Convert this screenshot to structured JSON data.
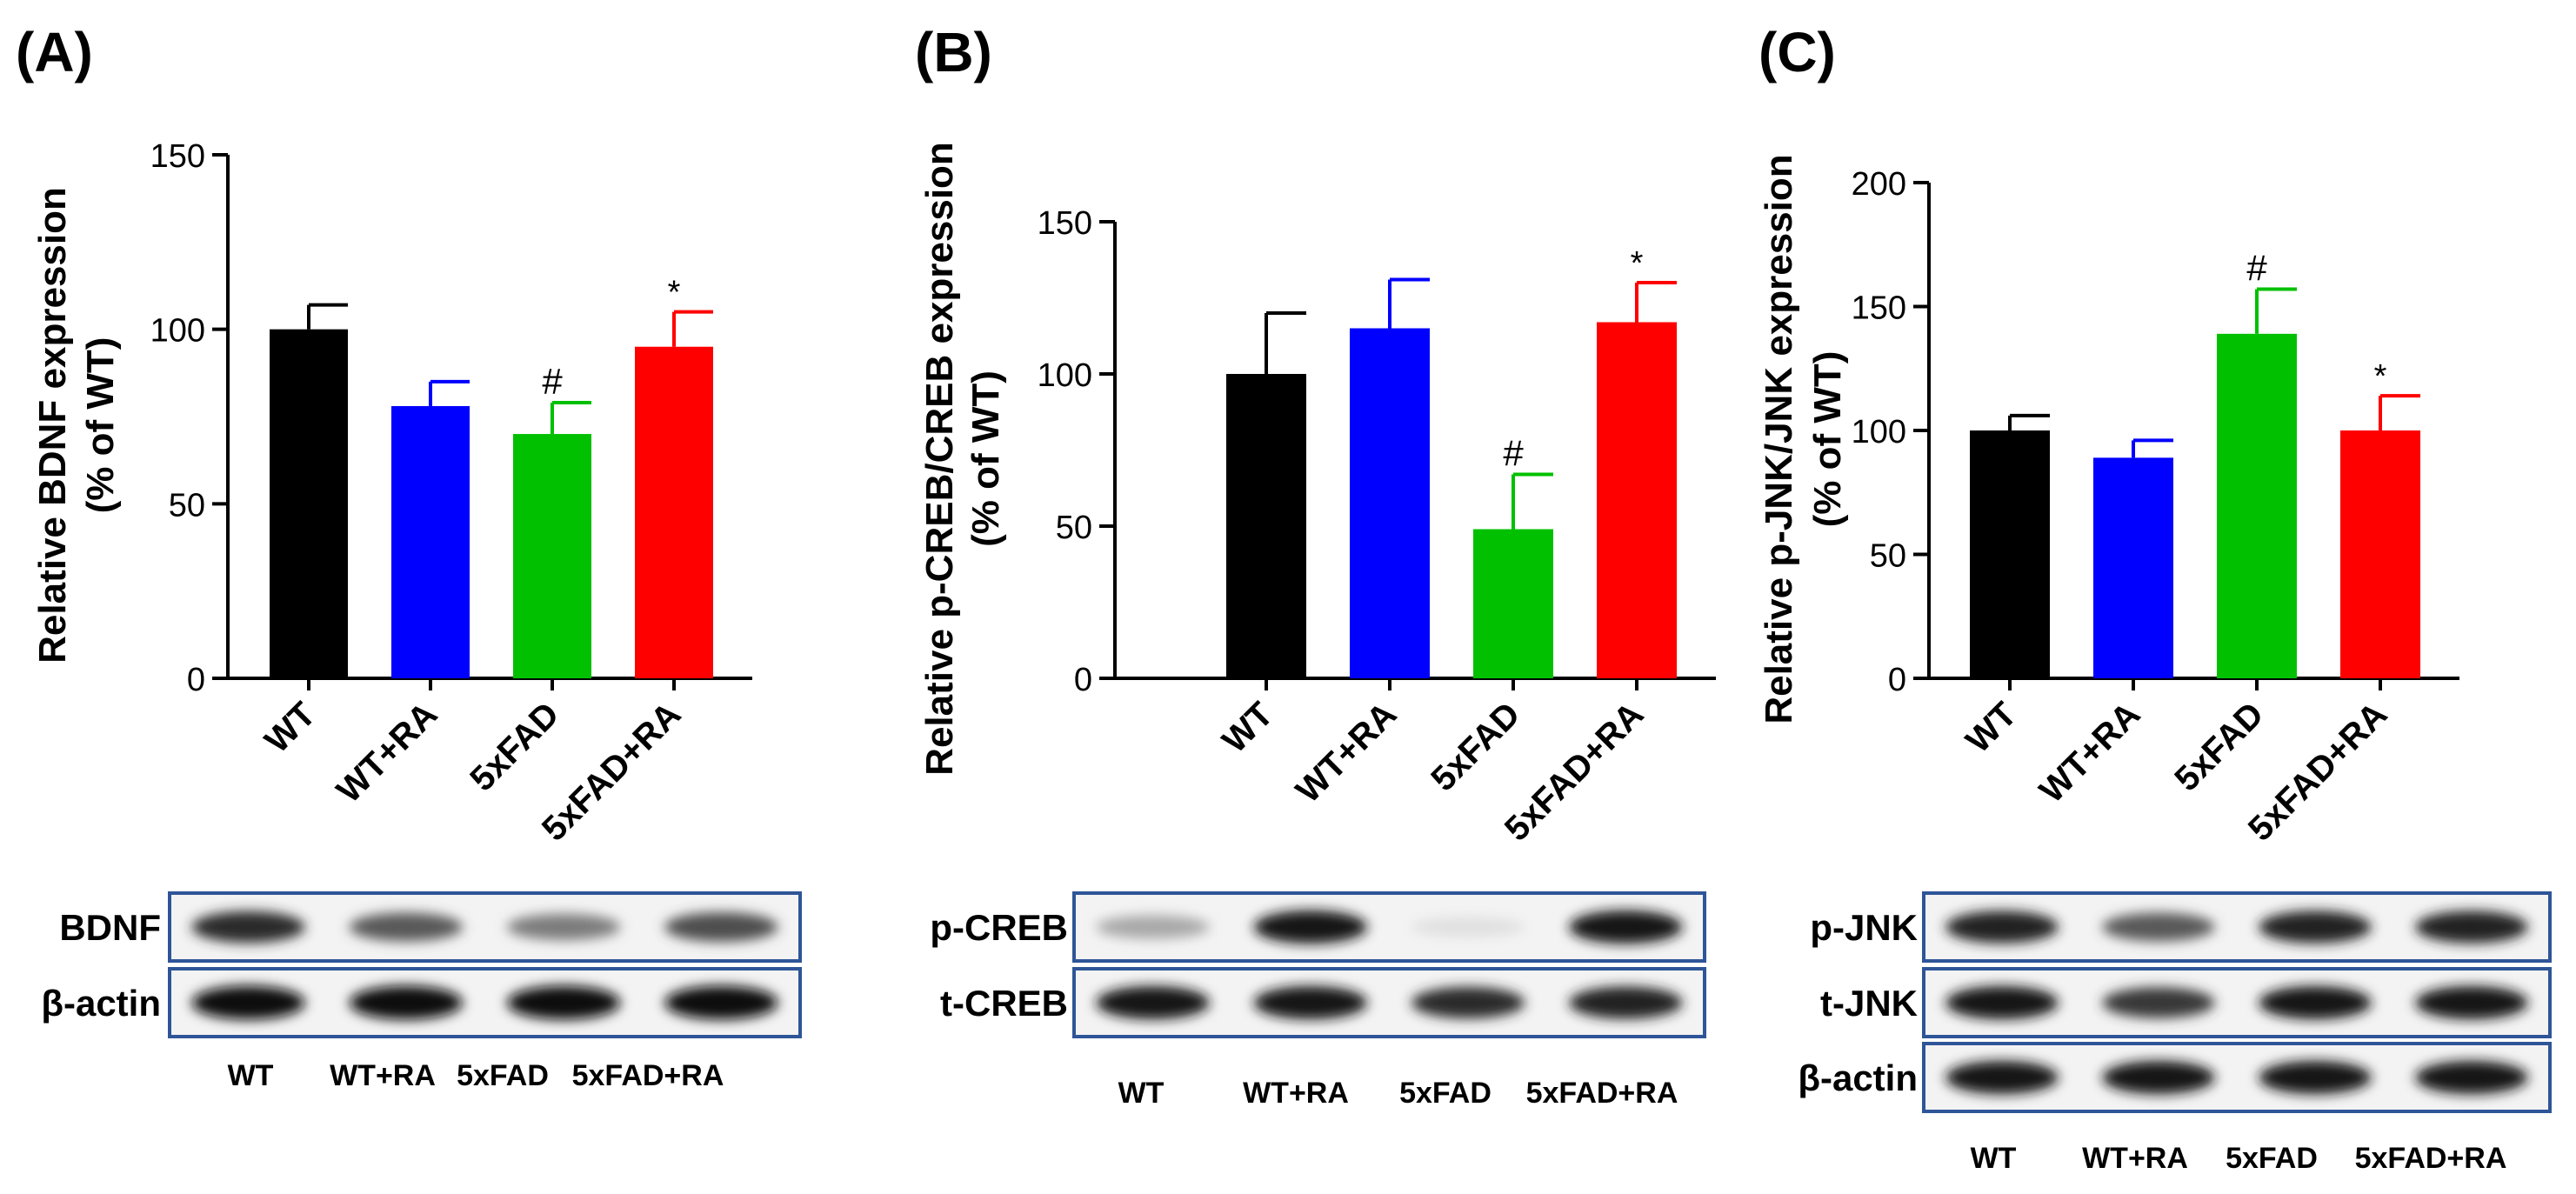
{
  "colors": {
    "black": "#000000",
    "blue": "#0000ff",
    "green": "#00c000",
    "red": "#ff0000",
    "box": "#2e5597"
  },
  "chart_data": [
    {
      "type": "bar",
      "panel_label": "(A)",
      "categories": [
        "WT",
        "WT+RA",
        "5xFAD",
        "5xFAD+RA"
      ],
      "values": [
        100,
        78,
        70,
        95
      ],
      "errors": [
        7,
        7,
        9,
        10
      ],
      "annotations": [
        "",
        "",
        "#",
        "*"
      ],
      "bar_colors": [
        "black",
        "blue",
        "green",
        "red"
      ],
      "title": "",
      "ylabel_line1": "Relative BDNF expression",
      "ylabel_line2": "(% of WT)",
      "xlabel": "",
      "ylim": [
        0,
        150
      ],
      "yticks": [
        0,
        50,
        100,
        150
      ],
      "blot": {
        "rows": [
          {
            "label": "BDNF",
            "intensity": [
              0.85,
              0.65,
              0.5,
              0.7
            ]
          },
          {
            "label": "β-actin",
            "intensity": [
              1,
              1,
              1,
              1
            ]
          }
        ],
        "lane_labels": [
          "WT",
          "WT+RA",
          "5xFAD",
          "5xFAD+RA"
        ]
      }
    },
    {
      "type": "bar",
      "panel_label": "(B)",
      "categories": [
        "WT",
        "WT+RA",
        "5xFAD",
        "5xFAD+RA"
      ],
      "values": [
        100,
        115,
        49,
        117
      ],
      "errors": [
        20,
        16,
        18,
        13
      ],
      "annotations": [
        "",
        "",
        "#",
        "*"
      ],
      "bar_colors": [
        "black",
        "blue",
        "green",
        "red"
      ],
      "title": "",
      "ylabel_line1": "Relative p-CREB/CREB expression",
      "ylabel_line2": "(% of WT)",
      "xlabel": "",
      "ylim": [
        0,
        150
      ],
      "yticks": [
        0,
        50,
        100,
        150
      ],
      "blot": {
        "rows": [
          {
            "label": "p-CREB",
            "intensity": [
              0.3,
              0.95,
              0.05,
              0.95
            ]
          },
          {
            "label": "t-CREB",
            "intensity": [
              0.95,
              0.95,
              0.85,
              0.9
            ]
          }
        ],
        "lane_labels": [
          "WT",
          "WT+RA",
          "5xFAD",
          "5xFAD+RA"
        ]
      }
    },
    {
      "type": "bar",
      "panel_label": "(C)",
      "categories": [
        "WT",
        "WT+RA",
        "5xFAD",
        "5xFAD+RA"
      ],
      "values": [
        100,
        89,
        139,
        100
      ],
      "errors": [
        6,
        7,
        18,
        14
      ],
      "annotations": [
        "",
        "",
        "#",
        "*"
      ],
      "bar_colors": [
        "black",
        "blue",
        "green",
        "red"
      ],
      "title": "",
      "ylabel_line1": "Relative p-JNK/JNK expression",
      "ylabel_line2": "(% of WT)",
      "xlabel": "",
      "ylim": [
        0,
        200
      ],
      "yticks": [
        0,
        50,
        100,
        150,
        200
      ],
      "blot": {
        "rows": [
          {
            "label": "p-JNK",
            "intensity": [
              0.9,
              0.65,
              0.9,
              0.9
            ]
          },
          {
            "label": "t-JNK",
            "intensity": [
              0.95,
              0.8,
              0.95,
              0.95
            ]
          },
          {
            "label": "β-actin",
            "intensity": [
              0.95,
              0.95,
              0.95,
              0.95
            ]
          }
        ],
        "lane_labels": [
          "WT",
          "WT+RA",
          "5xFAD",
          "5xFAD+RA"
        ]
      }
    }
  ]
}
